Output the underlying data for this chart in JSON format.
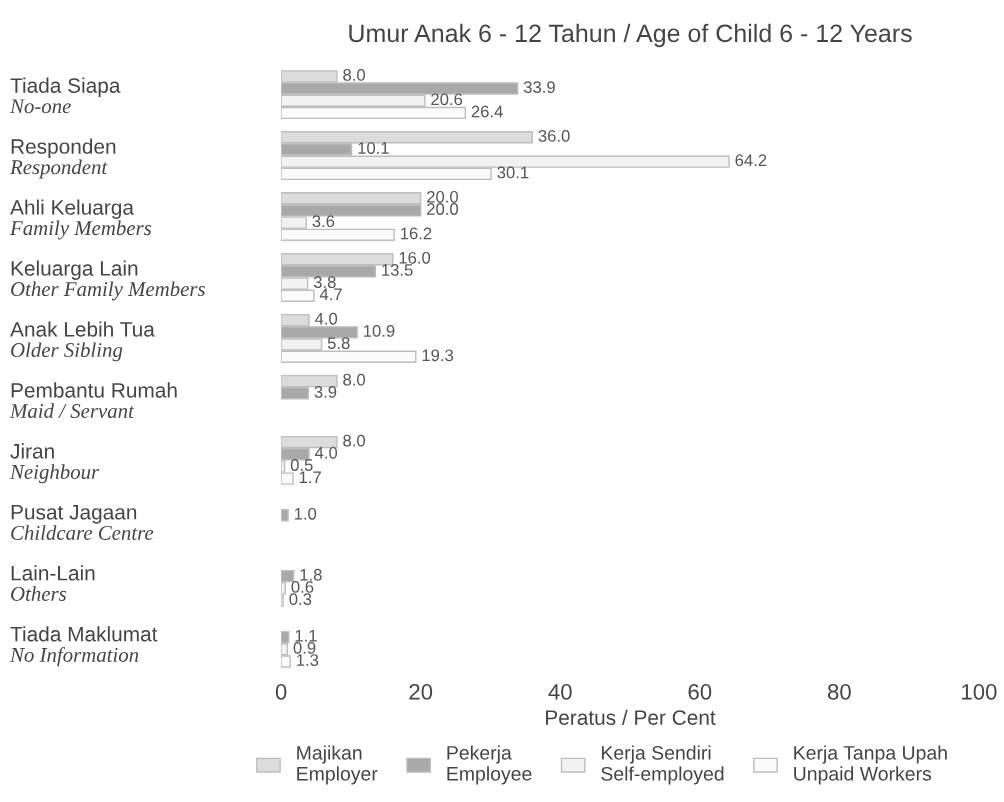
{
  "chart_data": {
    "type": "bar",
    "orientation": "horizontal",
    "title": "Umur Anak 6 - 12 Tahun / Age of Child 6 - 12 Years",
    "xlabel": "Peratus / Per Cent",
    "categories": [
      "Tiada Siapa\nNo-one",
      "Responden\nRespondent",
      "Ahli Keluarga\nFamily Members",
      "Keluarga Lain\nOther Family Members",
      "Anak Lebih Tua\nOlder Sibling",
      "Pembantu Rumah\nMaid / Servant",
      "Jiran\nNeighbour",
      "Pusat Jagaan\nChildcare Centre",
      "Lain-Lain\nOthers",
      "Tiada Maklumat\nNo Information"
    ],
    "series": [
      {
        "name": "Majikan\nEmployer",
        "color": "#dcdcdc",
        "values": [
          8.0,
          36.0,
          20.0,
          16.0,
          4.0,
          8.0,
          8.0,
          null,
          null,
          null
        ],
        "value_labels": [
          "8.0",
          "36.0",
          "20.0",
          "16.0",
          "4.0",
          "8.0",
          "8.0",
          null,
          null,
          null
        ]
      },
      {
        "name": "Pekerja\nEmployee",
        "color": "#a9a9a9",
        "values": [
          33.9,
          10.1,
          20.0,
          13.5,
          10.9,
          3.9,
          4.0,
          1.0,
          1.8,
          1.1
        ],
        "value_labels": [
          "33.9",
          "10.1",
          "20.0",
          "13.5",
          "10.9",
          "3.9",
          "4.0",
          "1.0",
          "1.8",
          "1.1"
        ]
      },
      {
        "name": "Kerja Sendiri\nSelf-employed",
        "color": "#f2f2f2",
        "values": [
          20.6,
          64.2,
          3.6,
          3.8,
          5.8,
          null,
          0.5,
          null,
          0.6,
          0.9
        ],
        "value_labels": [
          "20.6",
          "64.2",
          "3.6",
          "3.8",
          "5.8",
          null,
          "0.5",
          null,
          "0.6",
          "0.9"
        ]
      },
      {
        "name": "Kerja Tanpa Upah\nUnpaid Workers",
        "color": "#fbfbfb",
        "values": [
          26.4,
          30.1,
          16.2,
          4.7,
          19.3,
          null,
          1.7,
          null,
          0.3,
          1.3
        ],
        "value_labels": [
          "26.4",
          "30.1",
          "16.2",
          "4.7",
          "19.3",
          null,
          "1.7",
          null,
          "0.3",
          "1.3"
        ]
      }
    ],
    "xlim": [
      0,
      100
    ],
    "xticks": [
      0,
      20,
      40,
      60,
      80,
      100
    ],
    "grid": false,
    "legend": "bottom"
  }
}
